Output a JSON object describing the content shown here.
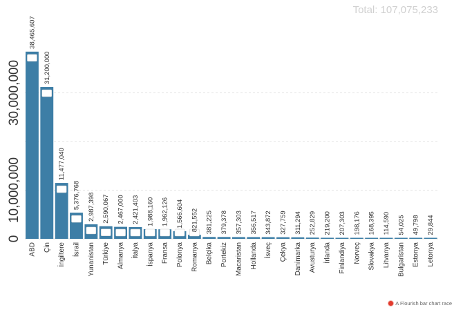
{
  "total_text": "Total: 107,075,233",
  "credit_text": "A Flourish bar chart race",
  "colors": {
    "bar": "#3d7ea6",
    "grid": "#e3e3e3",
    "text": "#333333",
    "total": "#d0d0d0"
  },
  "chart_data": {
    "type": "bar",
    "categories": [
      "ABD",
      "Çin",
      "İngiltere",
      "İsrail",
      "Yunanistan",
      "Türkiye",
      "Almanya",
      "İtalya",
      "İspanya",
      "Fransa",
      "Polonya",
      "Romanya",
      "Belçika",
      "Portekiz",
      "Macaristan",
      "Hollanda",
      "İsveç",
      "Çekya",
      "Danimarka",
      "Avusturya",
      "İrlanda",
      "Finlandiya",
      "Norveç",
      "Slovakya",
      "Litvanya",
      "Bulgaristan",
      "Estonya",
      "Letonya"
    ],
    "values": [
      38465607,
      31200000,
      11477040,
      5376768,
      2987398,
      2590067,
      2467000,
      2421403,
      1988160,
      1962126,
      1566604,
      821552,
      381225,
      379378,
      357303,
      356517,
      343872,
      327759,
      311294,
      252829,
      219200,
      207303,
      198176,
      168395,
      114590,
      54025,
      49798,
      29844
    ],
    "value_labels": [
      "38,465,607",
      "31,200,000",
      "11,477,040",
      "5,376,768",
      "2,987,398",
      "2,590,067",
      "2,467,000",
      "2,421,403",
      "1,988,160",
      "1,962,126",
      "1,566,604",
      "821,552",
      "381,225",
      "379,378",
      "357,303",
      "356,517",
      "343,872",
      "327,759",
      "311,294",
      "252,829",
      "219,200",
      "207,303",
      "198,176",
      "168,395",
      "114,590",
      "54,025",
      "49,798",
      "29,844"
    ],
    "flag_icons": [
      "us-flag-icon",
      "china-flag-icon",
      "uk-flag-icon",
      "israel-flag-icon",
      "greece-flag-icon",
      "turkey-flag-icon",
      "germany-flag-icon",
      "italy-flag-icon",
      "spain-flag-icon",
      "france-flag-icon",
      "poland-flag-icon",
      "romania-flag-icon"
    ],
    "yticks": [
      0,
      10000000,
      20000000,
      30000000
    ],
    "ytick_labels": [
      "0",
      "10,000,000",
      "",
      "30,000,000"
    ],
    "ylim": [
      0,
      40000000
    ],
    "grid": true
  }
}
